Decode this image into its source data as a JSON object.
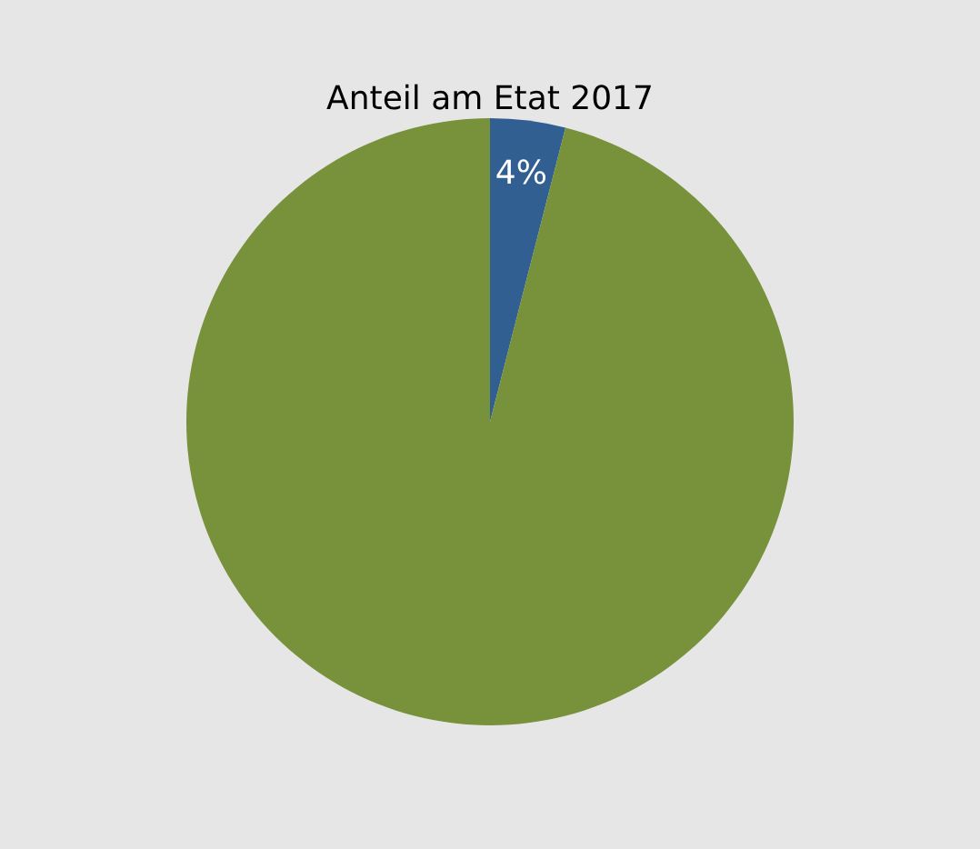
{
  "chart_data": {
    "type": "pie",
    "title": "Anteil am Etat 2017",
    "categories": [
      null,
      null
    ],
    "values": [
      4,
      96
    ],
    "colors": [
      "#325f91",
      "#77923b"
    ],
    "value_labels": [
      "4%",
      null
    ],
    "legend": false
  }
}
